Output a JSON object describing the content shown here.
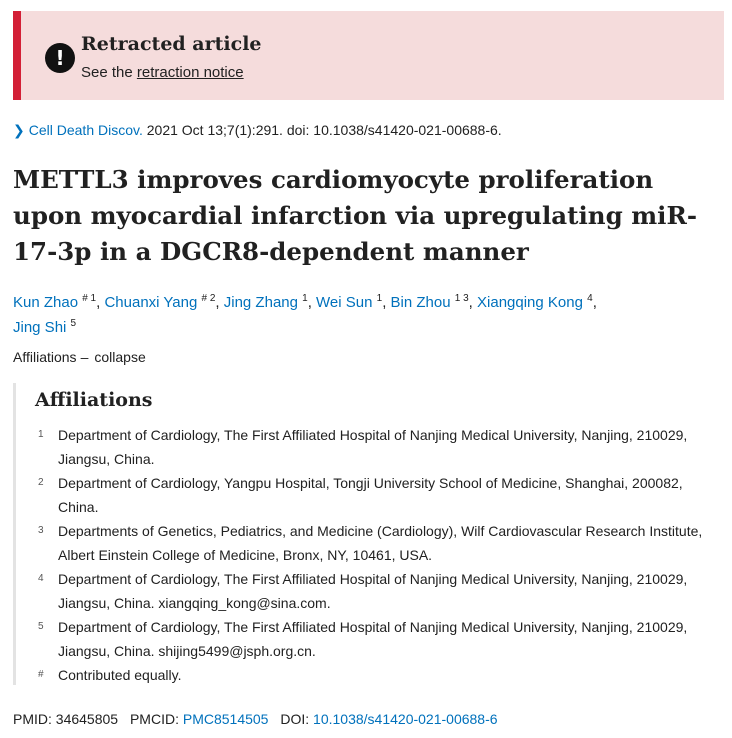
{
  "banner": {
    "title": "Retracted article",
    "text_prefix": "See the ",
    "link_label": "retraction notice",
    "icon": "exclamation-icon",
    "accent_color": "#d31f36",
    "bg_color": "#f5dcdc"
  },
  "citation": {
    "journal": "Cell Death Discov.",
    "details": " 2021 Oct 13;7(1):291. doi: 10.1038/s41420-021-00688-6."
  },
  "title": "METTL3 improves cardiomyocyte proliferation upon myocardial infarction via upregulating miR-17-3p in a DGCR8-dependent manner",
  "authors": [
    {
      "name": "Kun Zhao",
      "sup": "# 1"
    },
    {
      "name": "Chuanxi Yang",
      "sup": "# 2"
    },
    {
      "name": "Jing Zhang",
      "sup": "1"
    },
    {
      "name": "Wei Sun",
      "sup": "1"
    },
    {
      "name": "Bin Zhou",
      "sup": "1 3"
    },
    {
      "name": "Xiangqing Kong",
      "sup": "4"
    },
    {
      "name": "Jing Shi",
      "sup": "5"
    }
  ],
  "affiliations_toggle": {
    "label": "Affiliations",
    "action": "collapse"
  },
  "affiliations": {
    "heading": "Affiliations",
    "items": [
      {
        "num": "1",
        "text": "Department of Cardiology, The First Affiliated Hospital of Nanjing Medical University, Nanjing, 210029, Jiangsu, China."
      },
      {
        "num": "2",
        "text": "Department of Cardiology, Yangpu Hospital, Tongji University School of Medicine, Shanghai, 200082, China."
      },
      {
        "num": "3",
        "text": "Departments of Genetics, Pediatrics, and Medicine (Cardiology), Wilf Cardiovascular Research Institute, Albert Einstein College of Medicine, Bronx, NY, 10461, USA."
      },
      {
        "num": "4",
        "text": "Department of Cardiology, The First Affiliated Hospital of Nanjing Medical University, Nanjing, 210029, Jiangsu, China. xiangqing_kong@sina.com."
      },
      {
        "num": "5",
        "text": "Department of Cardiology, The First Affiliated Hospital of Nanjing Medical University, Nanjing, 210029, Jiangsu, China. shijing5499@jsph.org.cn."
      },
      {
        "num": "#",
        "text": "Contributed equally."
      }
    ]
  },
  "identifiers": {
    "pmid_label": "PMID:",
    "pmid": "34645805",
    "pmcid_label": "PMCID:",
    "pmcid": "PMC8514505",
    "doi_label": "DOI:",
    "doi": "10.1038/s41420-021-00688-6"
  },
  "colors": {
    "link": "#0071bc",
    "text": "#212121"
  }
}
